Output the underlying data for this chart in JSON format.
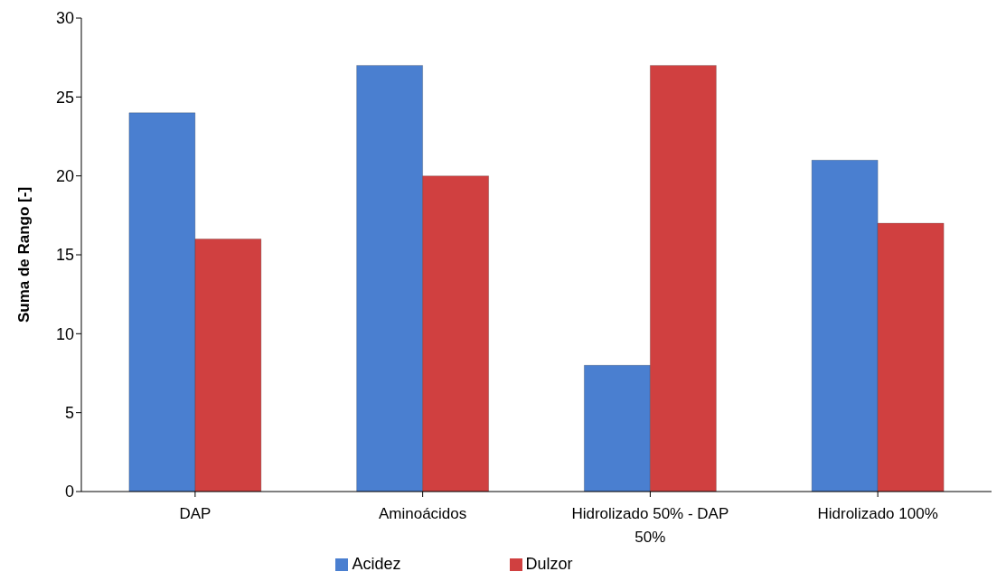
{
  "chart_data": {
    "type": "bar",
    "ylabel": "Suma de Rango [-]",
    "categories": [
      "DAP",
      "Aminoácidos",
      "Hidrolizado 50% - DAP 50%",
      "Hidrolizado 100%"
    ],
    "series": [
      {
        "name": "Acidez",
        "color": "#4a7fd0",
        "values": [
          24,
          27,
          8,
          21
        ]
      },
      {
        "name": "Dulzor",
        "color": "#d04040",
        "values": [
          16,
          20,
          27,
          17
        ]
      }
    ],
    "ylim": [
      0,
      30
    ],
    "yticks": [
      0,
      5,
      10,
      15,
      20,
      25,
      30
    ],
    "grid": false,
    "legend": "bottom"
  }
}
